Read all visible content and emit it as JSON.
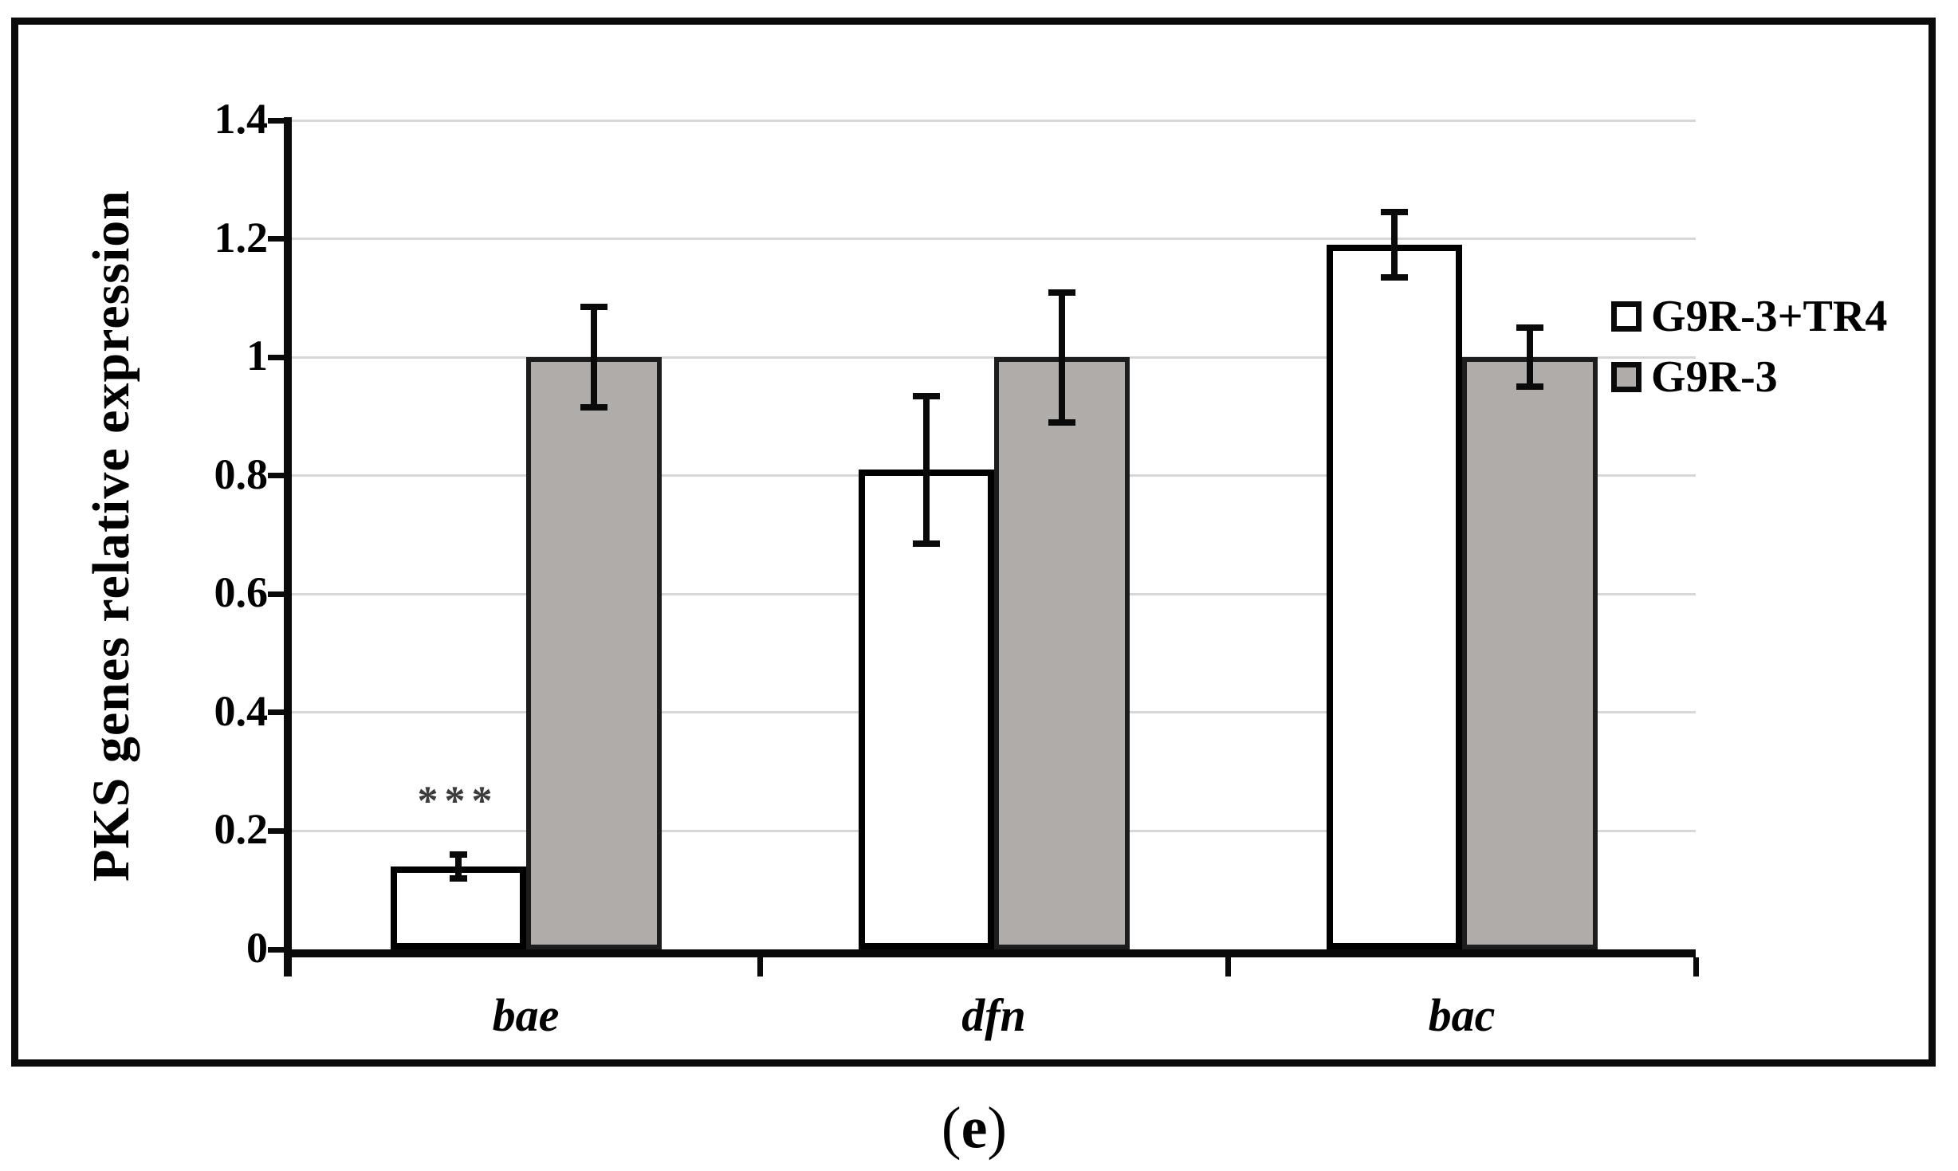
{
  "figure": {
    "caption": {
      "open": "(",
      "letter": "e",
      "close": ")"
    }
  },
  "chart_data": {
    "type": "bar",
    "title": "",
    "ylabel": "PKS genes relative expression",
    "xlabel": "",
    "categories": [
      "bae",
      "dfn",
      "bac"
    ],
    "series": [
      {
        "name": "G9R-3+TR4",
        "fill": "#ffffff",
        "border": "#000000",
        "values": [
          0.14,
          0.81,
          1.19
        ],
        "errors": [
          0.025,
          0.13,
          0.06
        ]
      },
      {
        "name": "G9R-3",
        "fill": "#b0acaa",
        "border": "#1d1d1d",
        "values": [
          1.0,
          1.0,
          1.0
        ],
        "errors": [
          0.09,
          0.115,
          0.055
        ]
      }
    ],
    "ylim": [
      0,
      1.4
    ],
    "ytick_step": 0.2,
    "ytick_labels": [
      "0",
      "0.2",
      "0.4",
      "0.6",
      "0.8",
      "1",
      "1.2",
      "1.4"
    ],
    "grid": true,
    "gridline_color": "#d7d7d7",
    "axis_color": "#0a0a0a",
    "legend_position": "inside-right-top",
    "annotations": [
      {
        "text": "***",
        "category_index": 0,
        "series_index": 0,
        "y": 0.25,
        "color": "#3c3c3c"
      }
    ]
  }
}
